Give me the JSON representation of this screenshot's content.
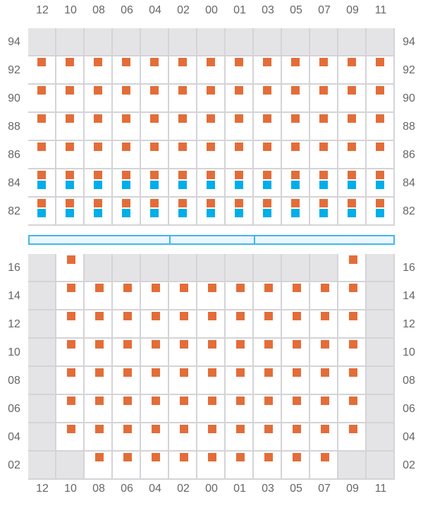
{
  "colors": {
    "occupied": "#e36d39",
    "secondary": "#00aee9",
    "blocked": "#e4e4e6",
    "grid": "#d4d4d8",
    "bar_border": "#3bb8ee",
    "bar_fill": "#eef6ff"
  },
  "columns": [
    "12",
    "10",
    "08",
    "06",
    "04",
    "02",
    "00",
    "01",
    "03",
    "05",
    "07",
    "09",
    "11"
  ],
  "top_grid": {
    "rows": [
      {
        "label": "94",
        "cells": [
          "g",
          "g",
          "g",
          "g",
          "g",
          "g",
          "g",
          "g",
          "g",
          "g",
          "g",
          "g",
          "g"
        ]
      },
      {
        "label": "92",
        "cells": [
          "o",
          "o",
          "o",
          "o",
          "o",
          "o",
          "o",
          "o",
          "o",
          "o",
          "o",
          "o",
          "o"
        ]
      },
      {
        "label": "90",
        "cells": [
          "o",
          "o",
          "o",
          "o",
          "o",
          "o",
          "o",
          "o",
          "o",
          "o",
          "o",
          "o",
          "o"
        ]
      },
      {
        "label": "88",
        "cells": [
          "o",
          "o",
          "o",
          "o",
          "o",
          "o",
          "o",
          "o",
          "o",
          "o",
          "o",
          "o",
          "o"
        ]
      },
      {
        "label": "86",
        "cells": [
          "o",
          "o",
          "o",
          "o",
          "o",
          "o",
          "o",
          "o",
          "o",
          "o",
          "o",
          "o",
          "o"
        ]
      },
      {
        "label": "84",
        "cells": [
          "ob",
          "ob",
          "ob",
          "ob",
          "ob",
          "ob",
          "ob",
          "ob",
          "ob",
          "ob",
          "ob",
          "ob",
          "ob"
        ]
      },
      {
        "label": "82",
        "cells": [
          "ob",
          "ob",
          "ob",
          "ob",
          "ob",
          "ob",
          "ob",
          "ob",
          "ob",
          "ob",
          "ob",
          "ob",
          "ob"
        ]
      }
    ]
  },
  "divider_segments": [
    5,
    3,
    5
  ],
  "bottom_grid": {
    "rows": [
      {
        "label": "16",
        "cells": [
          "g",
          "o",
          "g",
          "g",
          "g",
          "g",
          "g",
          "g",
          "g",
          "g",
          "g",
          "o",
          "g"
        ]
      },
      {
        "label": "14",
        "cells": [
          "g",
          "o",
          "o",
          "o",
          "o",
          "o",
          "o",
          "o",
          "o",
          "o",
          "o",
          "o",
          "g"
        ]
      },
      {
        "label": "12",
        "cells": [
          "g",
          "o",
          "o",
          "o",
          "o",
          "o",
          "o",
          "o",
          "o",
          "o",
          "o",
          "o",
          "g"
        ]
      },
      {
        "label": "10",
        "cells": [
          "g",
          "o",
          "o",
          "o",
          "o",
          "o",
          "o",
          "o",
          "o",
          "o",
          "o",
          "o",
          "g"
        ]
      },
      {
        "label": "08",
        "cells": [
          "g",
          "o",
          "o",
          "o",
          "o",
          "o",
          "o",
          "o",
          "o",
          "o",
          "o",
          "o",
          "g"
        ]
      },
      {
        "label": "06",
        "cells": [
          "g",
          "o",
          "o",
          "o",
          "o",
          "o",
          "o",
          "o",
          "o",
          "o",
          "o",
          "o",
          "g"
        ]
      },
      {
        "label": "04",
        "cells": [
          "g",
          "o",
          "o",
          "o",
          "o",
          "o",
          "o",
          "o",
          "o",
          "o",
          "o",
          "o",
          "g"
        ]
      },
      {
        "label": "02",
        "cells": [
          "g",
          "g",
          "o",
          "o",
          "o",
          "o",
          "o",
          "o",
          "o",
          "o",
          "o",
          "g",
          "g"
        ]
      }
    ]
  }
}
